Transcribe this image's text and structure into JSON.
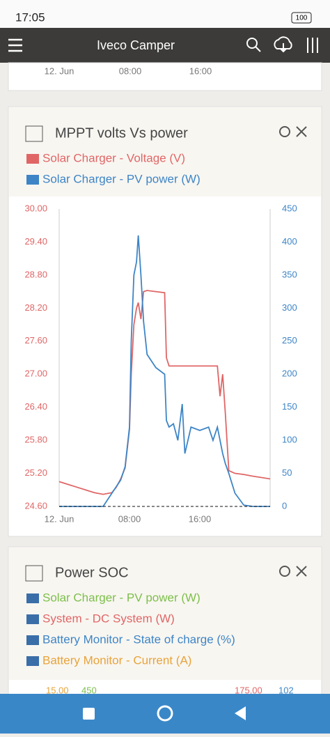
{
  "status_bar": {
    "time": "17:05",
    "battery": "100"
  },
  "app_bar": {
    "title": "Iveco Camper"
  },
  "cards": [
    {
      "x_labels": [
        "12. Jun",
        "08:00",
        "16:00"
      ]
    },
    {
      "title": "Power SOC",
      "legend": [
        "Solar Charger - PV power (W)",
        "System - DC System (W)",
        "Battery Monitor - State of charge (%)",
        "Battery Monitor - Current (A)"
      ],
      "partial_ticks": [
        "15.00",
        "450",
        "175.00",
        "102"
      ]
    }
  ],
  "chart_data": {
    "type": "line",
    "title": "MPPT volts Vs power",
    "x": [
      0,
      1,
      2,
      3,
      4,
      5,
      6,
      6.5,
      7,
      7.5,
      8,
      8.2,
      8.5,
      8.8,
      9,
      9.3,
      9.6,
      10,
      11,
      12,
      12.2,
      12.5,
      13,
      13.5,
      14,
      14.3,
      15,
      16,
      17,
      17.5,
      18,
      18.3,
      18.6,
      18.9,
      19.3,
      20,
      21,
      22,
      24
    ],
    "xlim": [
      0,
      24
    ],
    "xticks": [
      {
        "value": 0,
        "label": "12. Jun"
      },
      {
        "value": 8,
        "label": "08:00"
      },
      {
        "value": 16,
        "label": "16:00"
      }
    ],
    "ylim": [
      24.6,
      30.0
    ],
    "yticks": [
      {
        "value": 24.6,
        "label": "24.60"
      },
      {
        "value": 25.2,
        "label": "25.20"
      },
      {
        "value": 25.8,
        "label": "25.80"
      },
      {
        "value": 26.4,
        "label": "26.40"
      },
      {
        "value": 27.0,
        "label": "27.00"
      },
      {
        "value": 27.6,
        "label": "27.60"
      },
      {
        "value": 28.2,
        "label": "28.20"
      },
      {
        "value": 28.8,
        "label": "28.80"
      },
      {
        "value": 29.4,
        "label": "29.40"
      },
      {
        "value": 30.0,
        "label": "30.00"
      }
    ],
    "y2lim": [
      0,
      450
    ],
    "y2ticks": [
      0,
      50,
      100,
      150,
      200,
      250,
      300,
      350,
      400,
      450
    ],
    "series": [
      {
        "name": "Solar Charger - Voltage (V)",
        "color": "#e06666",
        "values": [
          25.05,
          25.0,
          24.95,
          24.9,
          24.85,
          24.82,
          24.85,
          24.95,
          25.1,
          25.3,
          26.0,
          27.0,
          27.9,
          28.2,
          28.3,
          28.0,
          28.5,
          28.52,
          28.5,
          28.48,
          27.3,
          27.15,
          27.15,
          27.15,
          27.15,
          27.15,
          27.15,
          27.15,
          27.15,
          27.15,
          27.15,
          26.6,
          27.0,
          26.3,
          25.25,
          25.2,
          25.18,
          25.15,
          25.1
        ]
      },
      {
        "name": "Solar Charger - PV power (W)",
        "color": "#3d85c6",
        "axis": "y2",
        "values": [
          0,
          0,
          0,
          0,
          0,
          0,
          20,
          30,
          40,
          60,
          120,
          250,
          350,
          370,
          410,
          350,
          280,
          230,
          210,
          200,
          130,
          120,
          125,
          100,
          155,
          80,
          120,
          115,
          120,
          100,
          120,
          100,
          80,
          65,
          50,
          20,
          2,
          0,
          0
        ]
      }
    ]
  }
}
